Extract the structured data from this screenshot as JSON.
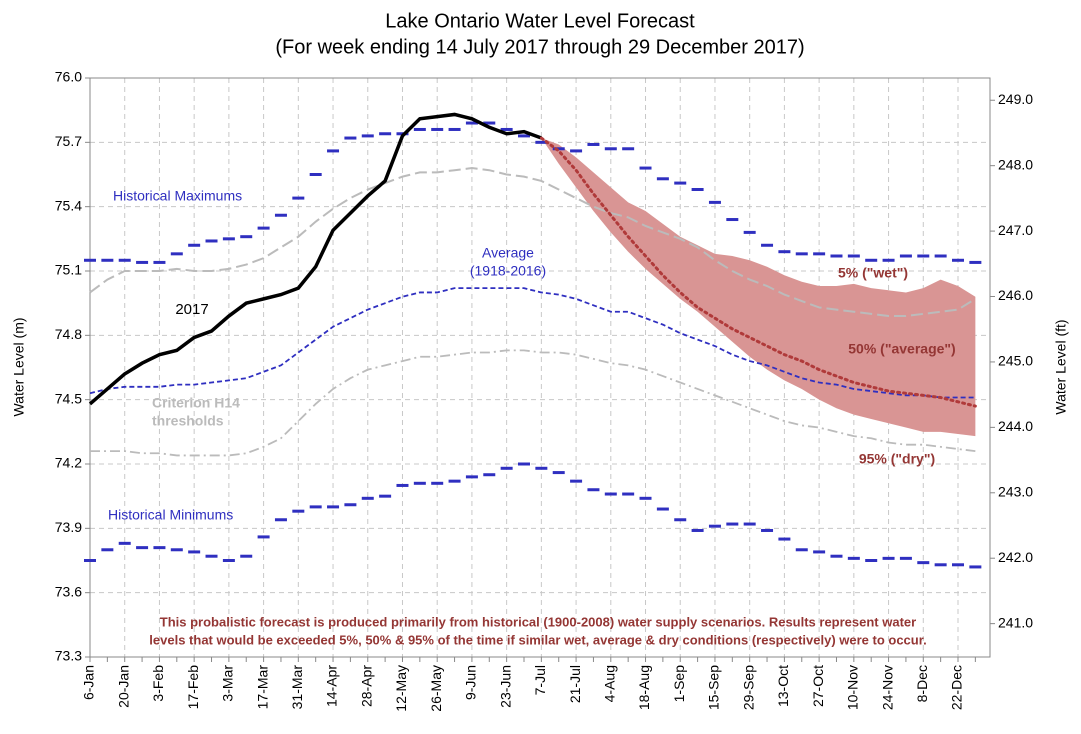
{
  "chart_data": {
    "type": "line",
    "title_lines": [
      "Lake Ontario Water Level Forecast",
      "(For week ending 14 July 2017 through 29 December 2017)"
    ],
    "ylabel": "Water Level (m)",
    "y2label": "Water Level (ft)",
    "categories": [
      "6-Jan",
      null,
      "20-Jan",
      null,
      "3-Feb",
      null,
      "17-Feb",
      null,
      "3-Mar",
      null,
      "17-Mar",
      null,
      "31-Mar",
      null,
      "14-Apr",
      null,
      "28-Apr",
      null,
      "12-May",
      null,
      "26-May",
      null,
      "9-Jun",
      null,
      "23-Jun",
      null,
      "7-Jul",
      null,
      "21-Jul",
      null,
      "4-Aug",
      null,
      "18-Aug",
      null,
      "1-Sep",
      null,
      "15-Sep",
      null,
      "29-Sep",
      null,
      "13-Oct",
      null,
      "27-Oct",
      null,
      "10-Nov",
      null,
      "24-Nov",
      null,
      "8-Dec",
      null,
      "22-Dec",
      null
    ],
    "ylim": [
      73.3,
      76.0
    ],
    "yticks": [
      73.3,
      73.6,
      73.9,
      74.2,
      74.5,
      74.8,
      75.1,
      75.4,
      75.7,
      {
        "value": 76.0,
        "label": "76.0"
      }
    ],
    "y2lim": [
      240.49,
      249.34
    ],
    "y2ticks": [
      {
        "value": 241,
        "label": "241.0"
      },
      {
        "value": 242,
        "label": "242.0"
      },
      {
        "value": 243,
        "label": "243.0"
      },
      {
        "value": 244,
        "label": "244.0"
      },
      {
        "value": 245,
        "label": "245.0"
      },
      {
        "value": 246,
        "label": "246.0"
      },
      {
        "value": 247,
        "label": "247.0"
      },
      {
        "value": 248,
        "label": "248.0"
      },
      {
        "value": 249,
        "label": "249.0"
      }
    ],
    "grid": true,
    "series": [
      {
        "name": "Historical Maximums",
        "color": "#2f2fc0",
        "style": "dashes",
        "values": [
          75.15,
          75.15,
          75.15,
          75.14,
          75.14,
          75.18,
          75.22,
          75.24,
          75.25,
          75.26,
          75.3,
          75.36,
          75.44,
          75.55,
          75.66,
          75.72,
          75.73,
          75.74,
          75.74,
          75.76,
          75.76,
          75.76,
          75.79,
          75.79,
          75.76,
          75.73,
          75.7,
          75.67,
          75.66,
          75.69,
          75.67,
          75.67,
          75.58,
          75.53,
          75.51,
          75.48,
          75.42,
          75.34,
          75.28,
          75.22,
          75.19,
          75.18,
          75.18,
          75.17,
          75.17,
          75.15,
          75.15,
          75.17,
          75.17,
          75.17,
          75.15,
          75.14
        ]
      },
      {
        "name": "Historical Minimums",
        "color": "#2f2fc0",
        "style": "dashes",
        "values": [
          73.75,
          73.8,
          73.83,
          73.81,
          73.81,
          73.8,
          73.79,
          73.77,
          73.75,
          73.77,
          73.86,
          73.94,
          73.98,
          74.0,
          74.0,
          74.01,
          74.04,
          74.05,
          74.1,
          74.11,
          74.11,
          74.12,
          74.14,
          74.15,
          74.18,
          74.2,
          74.18,
          74.16,
          74.12,
          74.08,
          74.06,
          74.06,
          74.04,
          73.99,
          73.94,
          73.89,
          73.91,
          73.92,
          73.92,
          73.89,
          73.85,
          73.8,
          73.79,
          73.77,
          73.76,
          73.75,
          73.76,
          73.76,
          73.74,
          73.73,
          73.73,
          73.72
        ]
      },
      {
        "name": "Average",
        "color": "#2f2fc0",
        "style": "dashed",
        "values": [
          74.53,
          74.55,
          74.56,
          74.56,
          74.56,
          74.57,
          74.57,
          74.58,
          74.59,
          74.6,
          74.63,
          74.66,
          74.72,
          74.78,
          74.84,
          74.88,
          74.92,
          74.95,
          74.98,
          75.0,
          75.0,
          75.02,
          75.02,
          75.02,
          75.02,
          75.02,
          75.0,
          74.99,
          74.97,
          74.94,
          74.91,
          74.91,
          74.88,
          74.85,
          74.81,
          74.78,
          74.75,
          74.71,
          74.68,
          74.66,
          74.63,
          74.6,
          74.58,
          74.57,
          74.55,
          74.54,
          74.53,
          74.52,
          74.52,
          74.51,
          74.51,
          74.51
        ]
      },
      {
        "color": "#bbbbbb",
        "style": "longdash",
        "values": [
          75.0,
          75.06,
          75.1,
          75.1,
          75.1,
          75.11,
          75.1,
          75.1,
          75.11,
          75.13,
          75.16,
          75.21,
          75.26,
          75.33,
          75.39,
          75.44,
          75.48,
          75.51,
          75.54,
          75.56,
          75.56,
          75.57,
          75.58,
          75.57,
          75.55,
          75.54,
          75.52,
          75.48,
          75.44,
          75.4,
          75.37,
          75.35,
          75.31,
          75.28,
          75.25,
          75.21,
          75.15,
          75.1,
          75.06,
          75.03,
          74.99,
          74.96,
          74.93,
          74.92,
          74.91,
          74.9,
          74.89,
          74.89,
          74.9,
          74.91,
          74.92,
          74.97
        ]
      },
      {
        "color": "#bbbbbb",
        "style": "dashdot",
        "values": [
          74.26,
          74.26,
          74.26,
          74.25,
          74.25,
          74.24,
          74.24,
          74.24,
          74.24,
          74.25,
          74.28,
          74.32,
          74.4,
          74.48,
          74.55,
          74.6,
          74.64,
          74.66,
          74.68,
          74.7,
          74.7,
          74.71,
          74.72,
          74.72,
          74.73,
          74.73,
          74.72,
          74.72,
          74.71,
          74.69,
          74.67,
          74.66,
          74.64,
          74.61,
          74.58,
          74.55,
          74.52,
          74.49,
          74.46,
          74.43,
          74.4,
          74.38,
          74.37,
          74.35,
          74.33,
          74.32,
          74.3,
          74.29,
          74.29,
          74.28,
          74.27,
          74.26
        ]
      },
      {
        "name": "2017",
        "color": "#000000",
        "style": "solid",
        "values": [
          74.48,
          74.55,
          74.62,
          74.67,
          74.71,
          74.73,
          74.79,
          74.82,
          74.89,
          74.95,
          74.97,
          74.99,
          75.02,
          75.12,
          75.29,
          75.37,
          75.45,
          75.52,
          75.73,
          75.81,
          75.82,
          75.83,
          75.81,
          75.77,
          75.74,
          75.75,
          75.72,
          null,
          null,
          null,
          null,
          null,
          null,
          null,
          null,
          null,
          null,
          null,
          null,
          null,
          null,
          null,
          null,
          null,
          null,
          null,
          null,
          null,
          null,
          null,
          null,
          null
        ]
      },
      {
        "name": "5% (\"wet\")",
        "color": "#d99594",
        "style": "band-upper",
        "values": [
          null,
          null,
          null,
          null,
          null,
          null,
          null,
          null,
          null,
          null,
          null,
          null,
          null,
          null,
          null,
          null,
          null,
          null,
          null,
          null,
          null,
          null,
          null,
          null,
          null,
          null,
          75.72,
          75.69,
          75.63,
          75.56,
          75.49,
          75.42,
          75.38,
          75.32,
          75.26,
          75.22,
          75.18,
          75.17,
          75.15,
          75.12,
          75.08,
          75.05,
          75.03,
          75.03,
          75.04,
          75.02,
          75.01,
          75.0,
          75.02,
          75.06,
          75.03,
          74.98
        ]
      },
      {
        "name": "95% (\"dry\")",
        "color": "#d99594",
        "style": "band-lower",
        "values": [
          null,
          null,
          null,
          null,
          null,
          null,
          null,
          null,
          null,
          null,
          null,
          null,
          null,
          null,
          null,
          null,
          null,
          null,
          null,
          null,
          null,
          null,
          null,
          null,
          null,
          null,
          75.72,
          75.6,
          75.49,
          75.38,
          75.28,
          75.19,
          75.11,
          75.04,
          74.97,
          74.91,
          74.84,
          74.77,
          74.7,
          74.64,
          74.59,
          74.55,
          74.5,
          74.46,
          74.43,
          74.41,
          74.39,
          74.37,
          74.35,
          74.35,
          74.34,
          74.33
        ]
      },
      {
        "name": "50% (\"average\")",
        "color": "#b03a3a",
        "style": "dotted",
        "values": [
          null,
          null,
          null,
          null,
          null,
          null,
          null,
          null,
          null,
          null,
          null,
          null,
          null,
          null,
          null,
          null,
          null,
          null,
          null,
          null,
          null,
          null,
          null,
          null,
          null,
          null,
          75.72,
          75.66,
          75.57,
          75.46,
          75.36,
          75.26,
          75.17,
          75.08,
          75.0,
          74.93,
          74.88,
          74.83,
          74.79,
          74.75,
          74.71,
          74.68,
          74.64,
          74.61,
          74.58,
          74.56,
          74.54,
          74.53,
          74.52,
          74.51,
          74.49,
          74.47
        ]
      }
    ],
    "annotations": [
      "(1918-2016)",
      "Criterion H14",
      "thresholds",
      "This probalistic forecast is produced primarily from historical (1900-2008) water supply scenarios.  Results represent water",
      "levels that would be exceeded 5%, 50% & 95% of the time if similar wet, average & dry conditions (respectively) were to occur."
    ]
  }
}
